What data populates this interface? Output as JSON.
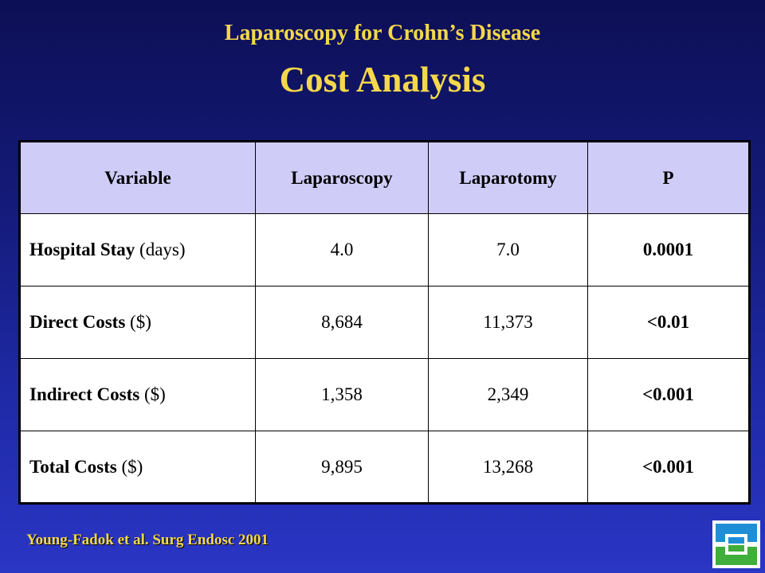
{
  "slide": {
    "title_line1": "Laparoscopy for Crohn’s Disease",
    "title_line2": "Cost Analysis"
  },
  "table": {
    "headers": [
      "Variable",
      "Laparoscopy",
      "Laparotomy",
      "P"
    ],
    "rows": [
      {
        "label_bold": "Hospital Stay",
        "label_unit": " (days)",
        "laparoscopy": "4.0",
        "laparotomy": "7.0",
        "p": "0.0001"
      },
      {
        "label_bold": "Direct Costs",
        "label_unit": " ($)",
        "laparoscopy": "8,684",
        "laparotomy": "11,373",
        "p": "<0.01"
      },
      {
        "label_bold": "Indirect Costs",
        "label_unit": " ($)",
        "laparoscopy": "1,358",
        "laparotomy": "2,349",
        "p": "<0.001"
      },
      {
        "label_bold": "Total Costs",
        "label_unit": " ($)",
        "laparoscopy": "9,895",
        "laparotomy": "13,268",
        "p": "<0.001"
      }
    ]
  },
  "citation": "Young-Fadok et al. Surg Endosc 2001",
  "logo": {
    "icon": "cleveland-clinic-logo-icon",
    "colors": [
      "#1e8fd6",
      "#3fae3a"
    ]
  },
  "colors": {
    "title": "#f5d84a",
    "header_fill": "#cfcdf8",
    "background_top": "#0d0f55",
    "background_bottom": "#2a36c4"
  }
}
